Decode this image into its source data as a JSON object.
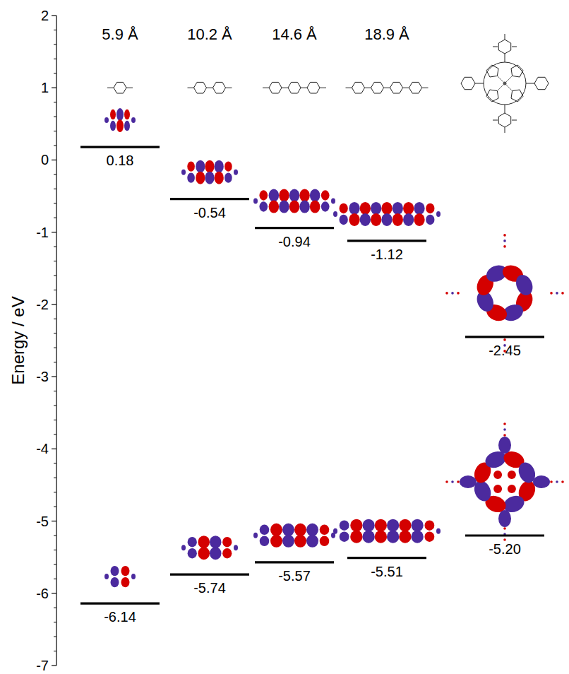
{
  "chart_data": {
    "type": "energy_level",
    "y_label": "Energy / eV",
    "categories": [
      "5.9 Å",
      "10.2 Å",
      "14.6 Å",
      "18.9 Å",
      null
    ],
    "series": [
      {
        "color": "#000000",
        "values": [
          0.18,
          -0.54,
          -0.94,
          -1.12,
          -2.45
        ]
      },
      {
        "color": "#000000",
        "values": [
          -6.14,
          -5.74,
          -5.57,
          -5.51,
          -5.2
        ],
        "value_labels": [
          "-6.14",
          "-5.74",
          "-5.57",
          "-5.51",
          "-5.20"
        ]
      }
    ],
    "ylim": [
      -7,
      2
    ],
    "yticks": [
      -7,
      -6,
      -5,
      -4,
      -3,
      -2,
      -1,
      0,
      1,
      2
    ],
    "grid": false,
    "data_labels": true,
    "tick_labels": "y"
  }
}
